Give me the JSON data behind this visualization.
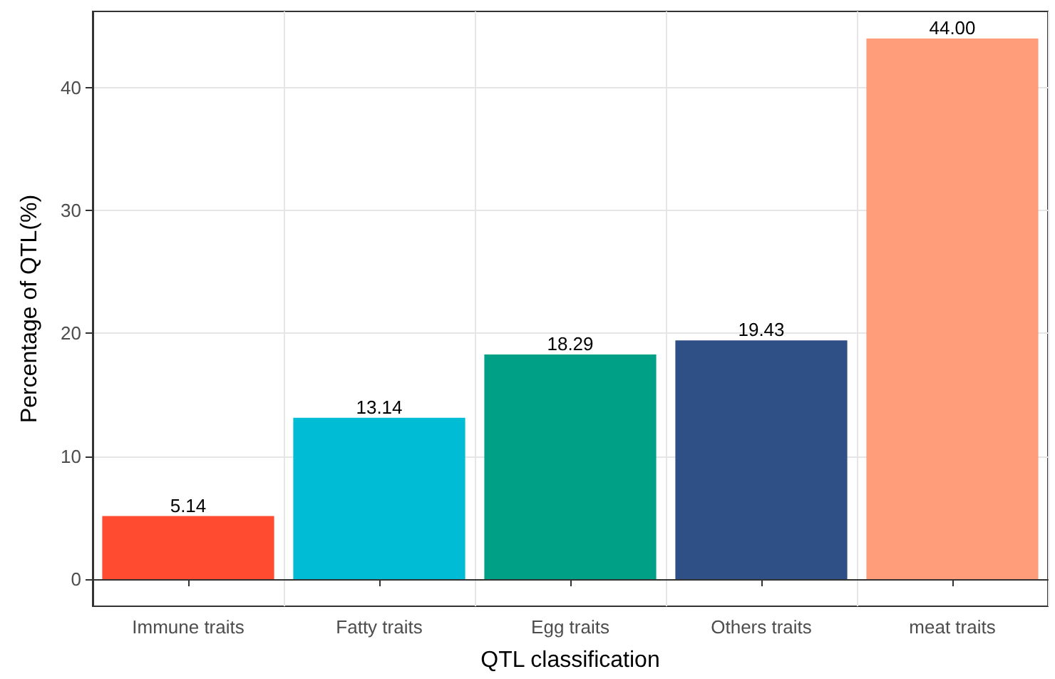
{
  "chart_data": {
    "type": "bar",
    "xlabel": "QTL classification",
    "ylabel": "Percentage of QTL(%)",
    "categories": [
      "Immune traits",
      "Fatty traits",
      "Egg traits",
      "Others traits",
      "meat traits"
    ],
    "values": [
      5.14,
      13.14,
      18.29,
      19.43,
      44.0
    ],
    "colors": [
      "#ff4b2f",
      "#00bcd4",
      "#00a087",
      "#2e5087",
      "#ff9d7b"
    ],
    "value_labels": [
      "5.14",
      "13.14",
      "18.29",
      "19.43",
      "44.00"
    ],
    "ylim": [
      -2.2,
      46.2
    ],
    "yticks": [
      0,
      10,
      20,
      30,
      40
    ],
    "grid": true
  }
}
